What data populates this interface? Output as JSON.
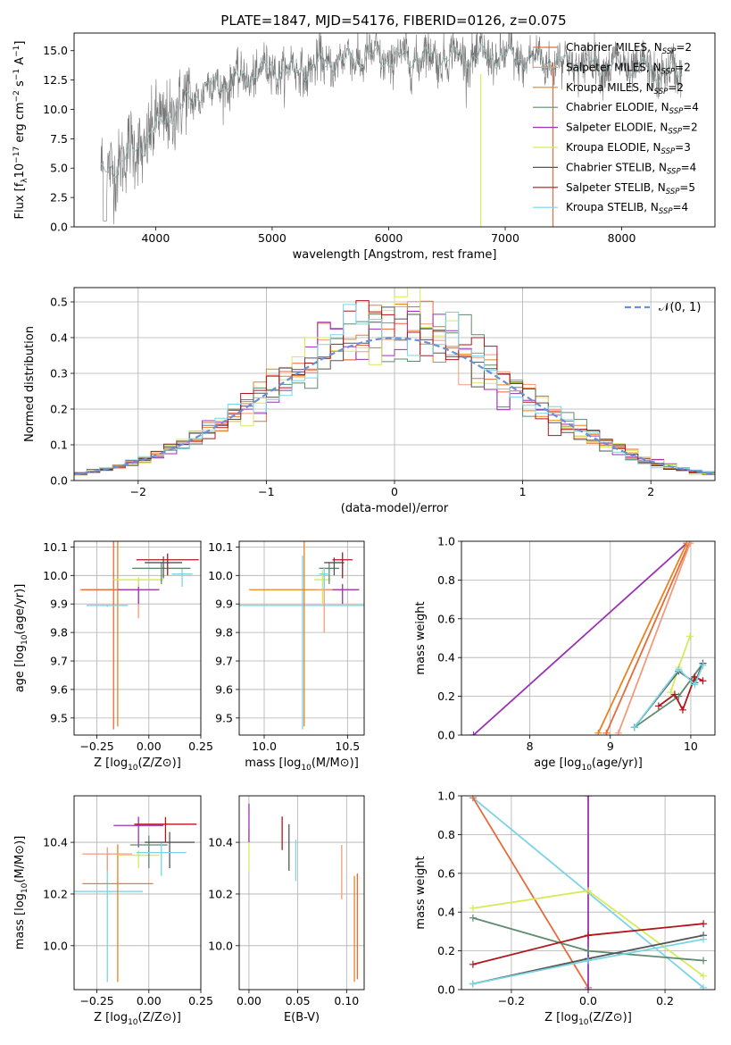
{
  "figure_title": "PLATE=1847, MJD=54176, FIBERID=0126, z=0.075",
  "models": [
    {
      "name": "Chabrier MILES",
      "legend_label": "Chabrier MILES, N",
      "nssp": "=2",
      "color": "#e66a3a"
    },
    {
      "name": "Salpeter MILES",
      "legend_label": "Salpeter MILES, N",
      "nssp": "=2",
      "color": "#f49a7a"
    },
    {
      "name": "Kroupa MILES",
      "legend_label": "Kroupa MILES, N",
      "nssp": "=2",
      "color": "#e8821e"
    },
    {
      "name": "Chabrier ELODIE",
      "legend_label": "Chabrier ELODIE, N",
      "nssp": "=4",
      "color": "#5e8b6e"
    },
    {
      "name": "Salpeter ELODIE",
      "legend_label": "Salpeter ELODIE, N",
      "nssp": "=2",
      "color": "#9a32b4"
    },
    {
      "name": "Kroupa ELODIE",
      "legend_label": "Kroupa ELODIE, N",
      "nssp": "=3",
      "color": "#d6ea5a"
    },
    {
      "name": "Chabrier STELIB",
      "legend_label": "Chabrier STELIB, N",
      "nssp": "=4",
      "color": "#555555"
    },
    {
      "name": "Salpeter STELIB",
      "legend_label": "Salpeter STELIB, N",
      "nssp": "=5",
      "color": "#b0161c"
    },
    {
      "name": "Kroupa STELIB",
      "legend_label": "Kroupa STELIB, N",
      "nssp": "=4",
      "color": "#7ad4e6"
    }
  ],
  "chart_data": [
    {
      "id": "spectrum",
      "type": "line",
      "xlabel": "wavelength [Angstrom, rest frame]",
      "ylabel": "Flux [f",
      "xlim": [
        3300,
        8800
      ],
      "ylim": [
        0,
        16.5
      ],
      "xticks": [
        4000,
        5000,
        6000,
        7000,
        8000
      ],
      "yticks": [
        0.0,
        2.5,
        5.0,
        7.5,
        10.0,
        12.5,
        15.0
      ],
      "x_range": [
        3530,
        8520
      ],
      "envelope": {
        "x": [
          3550,
          3700,
          3800,
          3900,
          4000,
          4100,
          4200,
          4300,
          4500,
          4700,
          5000,
          5200,
          5500,
          5800,
          6000,
          6500,
          7000,
          7500,
          8000,
          8500
        ],
        "y": [
          4.5,
          5.5,
          6.5,
          7.0,
          8.5,
          9.5,
          10.0,
          11.0,
          12.0,
          12.5,
          13.5,
          13.2,
          14.0,
          14.5,
          14.3,
          14.5,
          14.5,
          14.0,
          13.7,
          13.0
        ]
      },
      "series_names": [
        "Chabrier MILES",
        "Kroupa ELODIE",
        "Kroupa STELIB",
        "Salpeter STELIB"
      ]
    },
    {
      "id": "residuals",
      "type": "histogram",
      "xlabel": "(data-model)/error",
      "ylabel": "Normed distribution",
      "xlim": [
        -2.5,
        2.5
      ],
      "ylim": [
        0,
        0.54
      ],
      "xticks": [
        -2,
        -1,
        0,
        1,
        2
      ],
      "yticks": [
        0.0,
        0.1,
        0.2,
        0.3,
        0.4,
        0.5
      ],
      "grid": true,
      "legend": {
        "label": "N(0,1)",
        "position": "top-right"
      },
      "bin_width": 0.1,
      "reference_curve": "normal(0,1)"
    },
    {
      "id": "age-vs-Z",
      "type": "errorbar",
      "xlabel": "Z [log",
      "ylabel": "age  [log",
      "xlim": [
        -0.36,
        0.25
      ],
      "ylim": [
        9.44,
        10.12
      ],
      "xticks": [
        -0.25,
        0.0,
        0.25
      ],
      "yticks": [
        9.5,
        9.6,
        9.7,
        9.8,
        9.9,
        10.0,
        10.1
      ],
      "grid": true,
      "points": [
        {
          "model": "Kroupa MILES",
          "x": -0.15,
          "xerr": 0.18,
          "y": 9.95,
          "ylo": 9.47
        },
        {
          "model": "Chabrier MILES",
          "x": -0.17,
          "xerr": 0.15,
          "y": 9.95,
          "ylo": 9.46
        },
        {
          "model": "Salpeter MILES",
          "x": -0.05,
          "xerr": 0.1,
          "y": 9.95,
          "ylo": 9.85
        },
        {
          "model": "Kroupa STELIB",
          "x": -0.2,
          "xerr": 0.1,
          "y": 9.895,
          "ylo": 9.89
        },
        {
          "model": "Salpeter ELODIE",
          "x": -0.05,
          "xerr": 0.1,
          "y": 9.95,
          "ylo": 9.9
        },
        {
          "model": "Kroupa ELODIE",
          "x": -0.05,
          "xerr": 0.12,
          "y": 9.985,
          "ylo": 9.96
        },
        {
          "model": "Chabrier ELODIE",
          "x": 0.06,
          "xerr": 0.14,
          "y": 10.025,
          "ylo": 9.97
        },
        {
          "model": "Chabrier STELIB",
          "x": 0.07,
          "xerr": 0.09,
          "y": 10.045,
          "ylo": 9.99
        },
        {
          "model": "Salpeter STELIB",
          "x": 0.09,
          "xerr": 0.15,
          "y": 10.055,
          "ylo": 10.0
        },
        {
          "model": "Kroupa STELIB",
          "x": 0.16,
          "xerr": 0.05,
          "y": 10.005,
          "ylo": 9.96
        }
      ]
    },
    {
      "id": "age-vs-mass",
      "type": "errorbar",
      "xlabel": "mass [log",
      "ylabel": "",
      "xlim": [
        9.85,
        10.6
      ],
      "ylim": [
        9.44,
        10.12
      ],
      "xticks": [
        10.0,
        10.5
      ],
      "yticks": [
        9.5,
        9.6,
        9.7,
        9.8,
        9.9,
        10.0,
        10.1
      ],
      "grid": true,
      "points": [
        {
          "model": "Kroupa STELIB",
          "x": 10.23,
          "xerr": 0.4,
          "y": 9.895,
          "ylo": 9.46
        },
        {
          "model": "Kroupa MILES",
          "x": 10.24,
          "xerr": 0.33,
          "y": 9.95,
          "ylo": 9.47
        },
        {
          "model": "Salpeter ELODIE",
          "x": 10.47,
          "xerr": 0.1,
          "y": 9.95,
          "ylo": 9.9
        },
        {
          "model": "Kroupa ELODIE",
          "x": 10.35,
          "xerr": 0.05,
          "y": 9.985,
          "ylo": 9.9
        },
        {
          "model": "Salpeter MILES",
          "x": 10.36,
          "xerr": 0.05,
          "y": 9.95,
          "ylo": 9.8
        },
        {
          "model": "Chabrier ELODIE",
          "x": 10.39,
          "xerr": 0.06,
          "y": 10.025,
          "ylo": 9.97
        },
        {
          "model": "Chabrier STELIB",
          "x": 10.42,
          "xerr": 0.06,
          "y": 10.045,
          "ylo": 10.0
        },
        {
          "model": "Salpeter STELIB",
          "x": 10.47,
          "xerr": 0.06,
          "y": 10.055,
          "ylo": 9.99
        },
        {
          "model": "Kroupa STELIB",
          "x": 10.36,
          "xerr": 0.03,
          "y": 10.005,
          "ylo": 9.95
        }
      ]
    },
    {
      "id": "weight-vs-age",
      "type": "line",
      "xlabel": "age  [log",
      "ylabel": "mass weight",
      "xlim": [
        7.15,
        10.3
      ],
      "ylim": [
        0,
        1.0
      ],
      "xticks": [
        8,
        9,
        10
      ],
      "yticks": [
        0.0,
        0.2,
        0.4,
        0.6,
        0.8,
        1.0
      ],
      "grid": true,
      "series": [
        {
          "model": "Salpeter ELODIE",
          "x": [
            7.3,
            9.95
          ],
          "y": [
            0.0,
            0.99
          ]
        },
        {
          "model": "Chabrier MILES",
          "x": [
            8.95,
            9.98
          ],
          "y": [
            0.01,
            0.99
          ]
        },
        {
          "model": "Kroupa MILES",
          "x": [
            8.85,
            9.95
          ],
          "y": [
            0.01,
            0.99
          ]
        },
        {
          "model": "Salpeter MILES",
          "x": [
            9.1,
            9.99
          ],
          "y": [
            0.01,
            0.99
          ]
        },
        {
          "model": "Kroupa ELODIE",
          "x": [
            9.75,
            9.85,
            9.99
          ],
          "y": [
            0.22,
            0.35,
            0.51
          ]
        },
        {
          "model": "Chabrier ELODIE",
          "x": [
            9.3,
            9.85,
            10.15
          ],
          "y": [
            0.04,
            0.2,
            0.37
          ]
        },
        {
          "model": "Chabrier STELIB",
          "x": [
            9.3,
            9.85,
            10.05,
            10.15
          ],
          "y": [
            0.04,
            0.33,
            0.27,
            0.37
          ]
        },
        {
          "model": "Salpeter STELIB",
          "x": [
            9.6,
            9.8,
            9.9,
            10.05,
            10.15
          ],
          "y": [
            0.15,
            0.21,
            0.13,
            0.3,
            0.28
          ]
        },
        {
          "model": "Kroupa STELIB",
          "x": [
            9.3,
            9.85,
            10.05,
            10.15
          ],
          "y": [
            0.04,
            0.34,
            0.26,
            0.36
          ]
        }
      ]
    },
    {
      "id": "mass-vs-Z",
      "type": "errorbar",
      "xlabel": "Z [log",
      "ylabel": "mass [log",
      "xlim": [
        -0.36,
        0.25
      ],
      "ylim": [
        9.83,
        10.58
      ],
      "xticks": [
        -0.25,
        0.0,
        0.25
      ],
      "yticks": [
        10.0,
        10.2,
        10.4
      ],
      "grid": true,
      "points": [
        {
          "model": "Kroupa STELIB",
          "x": -0.2,
          "xerr": 0.17,
          "y": 10.21,
          "ylo": 9.86
        },
        {
          "model": "Kroupa MILES",
          "x": -0.15,
          "xerr": 0.17,
          "y": 10.24,
          "ylo": 9.86
        },
        {
          "model": "Salpeter MILES",
          "x": -0.2,
          "xerr": 0.12,
          "y": 10.355,
          "ylo": 10.29
        },
        {
          "model": "Salpeter ELODIE",
          "x": -0.05,
          "xerr": 0.12,
          "y": 10.465,
          "ylo": 10.38
        },
        {
          "model": "Kroupa ELODIE",
          "x": -0.05,
          "xerr": 0.1,
          "y": 10.35,
          "ylo": 10.3
        },
        {
          "model": "Chabrier ELODIE",
          "x": 0.0,
          "xerr": 0.09,
          "y": 10.39,
          "ylo": 10.3
        },
        {
          "model": "Salpeter STELIB",
          "x": 0.08,
          "xerr": 0.15,
          "y": 10.47,
          "ylo": 10.4
        },
        {
          "model": "Chabrier STELIB",
          "x": 0.1,
          "xerr": 0.12,
          "y": 10.4,
          "ylo": 10.3
        },
        {
          "model": "Kroupa STELIB",
          "x": 0.06,
          "xerr": 0.12,
          "y": 10.36,
          "ylo": 10.27
        }
      ]
    },
    {
      "id": "mass-vs-EBV",
      "type": "errorbar",
      "xlabel": "E(B-V)",
      "ylabel": "",
      "xlim": [
        -0.01,
        0.118
      ],
      "ylim": [
        9.83,
        10.58
      ],
      "xticks": [
        0.0,
        0.05,
        0.1
      ],
      "yticks": [
        10.0,
        10.2,
        10.4
      ],
      "grid": true,
      "points": [
        {
          "model": "Kroupa ELODIE",
          "x": 0.0,
          "y": 10.35,
          "ylo": 10.29,
          "yhi": 10.45
        },
        {
          "model": "Salpeter ELODIE",
          "x": 0.0,
          "y": 10.47,
          "ylo": 10.4,
          "yhi": 10.55
        },
        {
          "model": "Salpeter STELIB",
          "x": 0.034,
          "y": 10.44,
          "ylo": 10.37,
          "yhi": 10.5
        },
        {
          "model": "Chabrier STELIB",
          "x": 0.041,
          "y": 10.38,
          "ylo": 10.29,
          "yhi": 10.47
        },
        {
          "model": "Kroupa STELIB",
          "x": 0.048,
          "y": 10.33,
          "ylo": 10.25,
          "yhi": 10.41
        },
        {
          "model": "Salpeter MILES",
          "x": 0.095,
          "y": 10.27,
          "ylo": 10.18,
          "yhi": 10.39
        },
        {
          "model": "Kroupa MILES",
          "x": 0.108,
          "y": 10.1,
          "ylo": 9.86,
          "yhi": 10.27
        },
        {
          "model": "Chabrier MILES",
          "x": 0.111,
          "y": 10.1,
          "ylo": 9.87,
          "yhi": 10.28
        }
      ]
    },
    {
      "id": "weight-vs-Z",
      "type": "line",
      "xlabel": "Z [log",
      "ylabel": "mass weight",
      "xlim": [
        -0.33,
        0.33
      ],
      "ylim": [
        0,
        1.0
      ],
      "xticks": [
        -0.2,
        0.0,
        0.2
      ],
      "yticks": [
        0.0,
        0.2,
        0.4,
        0.6,
        0.8,
        1.0
      ],
      "grid": true,
      "series": [
        {
          "model": "Kroupa STELIB",
          "x": [
            -0.3,
            0.3
          ],
          "y": [
            0.99,
            0.01
          ]
        },
        {
          "model": "Chabrier MILES",
          "x": [
            -0.3,
            0.0
          ],
          "y": [
            0.99,
            0.01
          ]
        },
        {
          "model": "Salpeter ELODIE",
          "x": [
            0.0,
            0.0
          ],
          "y": [
            0.0,
            1.0
          ]
        },
        {
          "model": "Kroupa ELODIE",
          "x": [
            -0.3,
            0.0,
            0.3
          ],
          "y": [
            0.42,
            0.51,
            0.07
          ]
        },
        {
          "model": "Chabrier ELODIE",
          "x": [
            -0.3,
            0.0,
            0.3
          ],
          "y": [
            0.37,
            0.2,
            0.15
          ]
        },
        {
          "model": "Salpeter STELIB",
          "x": [
            -0.3,
            0.0,
            0.3
          ],
          "y": [
            0.13,
            0.28,
            0.34
          ]
        },
        {
          "model": "Chabrier STELIB",
          "x": [
            -0.3,
            0.0,
            0.3
          ],
          "y": [
            0.03,
            0.16,
            0.28
          ]
        },
        {
          "model": "Kroupa STELIB",
          "x": [
            -0.3,
            0.0,
            0.3
          ],
          "y": [
            0.03,
            0.15,
            0.26
          ]
        }
      ]
    }
  ]
}
